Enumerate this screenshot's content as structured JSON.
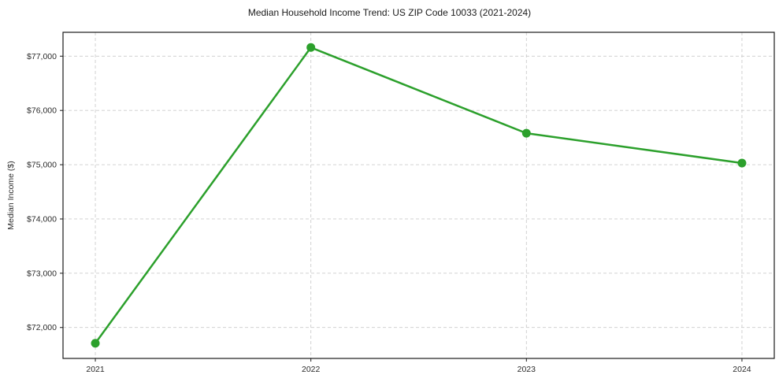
{
  "chart_data": {
    "type": "line",
    "title": "Median Household Income Trend: US ZIP Code 10033 (2021-2024)",
    "xlabel": "",
    "ylabel": "Median Income ($)",
    "x": [
      2021,
      2022,
      2023,
      2024
    ],
    "x_tick_labels": [
      "2021",
      "2022",
      "2023",
      "2024"
    ],
    "series": [
      {
        "name": "Median Household Income",
        "values": [
          71710,
          77160,
          75580,
          75030
        ]
      }
    ],
    "y_ticks": [
      72000,
      73000,
      74000,
      75000,
      76000,
      77000
    ],
    "y_tick_labels": [
      "$72,000",
      "$73,000",
      "$74,000",
      "$75,000",
      "$76,000",
      "$77,000"
    ],
    "xlim": [
      2020.85,
      2024.15
    ],
    "ylim": [
      71430,
      77440
    ],
    "grid": true,
    "grid_style": "dashed",
    "legend_position": "none",
    "line_color": "#2ca02c",
    "marker": "circle"
  }
}
